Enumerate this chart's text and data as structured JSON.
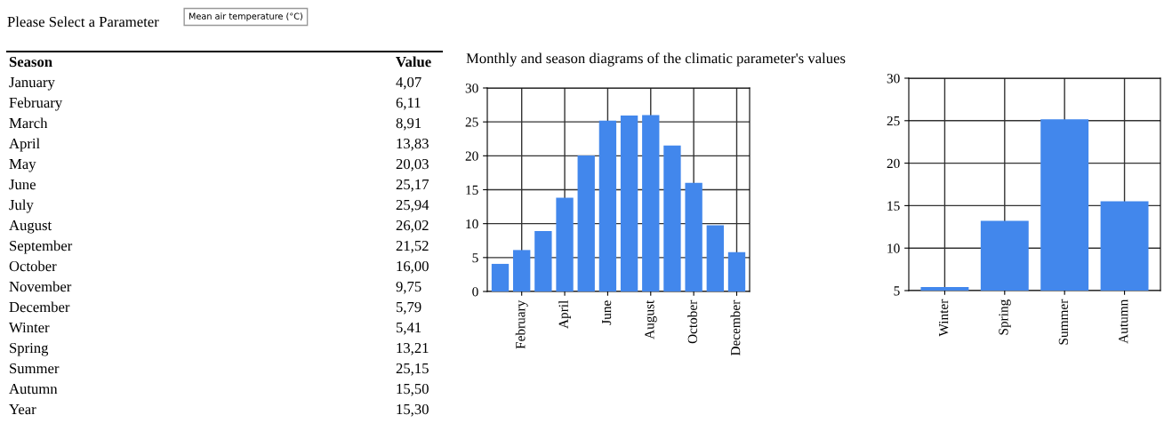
{
  "chart_data": [
    {
      "type": "other",
      "annotations": [
        "Please Select a Parameter",
        "Mean air temperature (°C)",
        "Season",
        "Value",
        "January",
        "4,07",
        "February",
        "6,11",
        "March",
        "8,91",
        "April",
        "13,83",
        "May",
        "20,03",
        "June",
        "25,17",
        "July",
        "25,94",
        "August",
        "26,02",
        "September",
        "21,52",
        "October",
        "16,00",
        "November",
        "9,75",
        "December",
        "5,79",
        "Winter",
        "5,41",
        "Spring",
        "13,21",
        "Summer",
        "25,15",
        "Autumn",
        "15,50",
        "Year",
        "15,30"
      ]
    },
    {
      "type": "bar",
      "title": "Monthly and season diagrams of the climatic parameter's values",
      "categories": [
        null,
        "February",
        null,
        "April",
        null,
        "June",
        null,
        "August",
        null,
        "October",
        null,
        "December"
      ],
      "values": [
        4.07,
        6.11,
        8.91,
        13.83,
        20.03,
        25.17,
        25.94,
        26.02,
        21.52,
        16.0,
        9.75,
        5.79
      ],
      "color": "#4287ec",
      "ylim": [
        0,
        30
      ],
      "yticks": [
        0,
        5,
        10,
        15,
        20,
        25,
        30
      ],
      "grid": true
    },
    {
      "type": "bar",
      "categories": [
        "Winter",
        "Spring",
        "Summer",
        "Autumn"
      ],
      "values": [
        5.41,
        13.21,
        25.15,
        15.5
      ],
      "color": "#4287ec",
      "ylim": [
        5,
        30
      ],
      "yticks": [
        5,
        10,
        15,
        20,
        25,
        30
      ],
      "grid": true
    }
  ]
}
